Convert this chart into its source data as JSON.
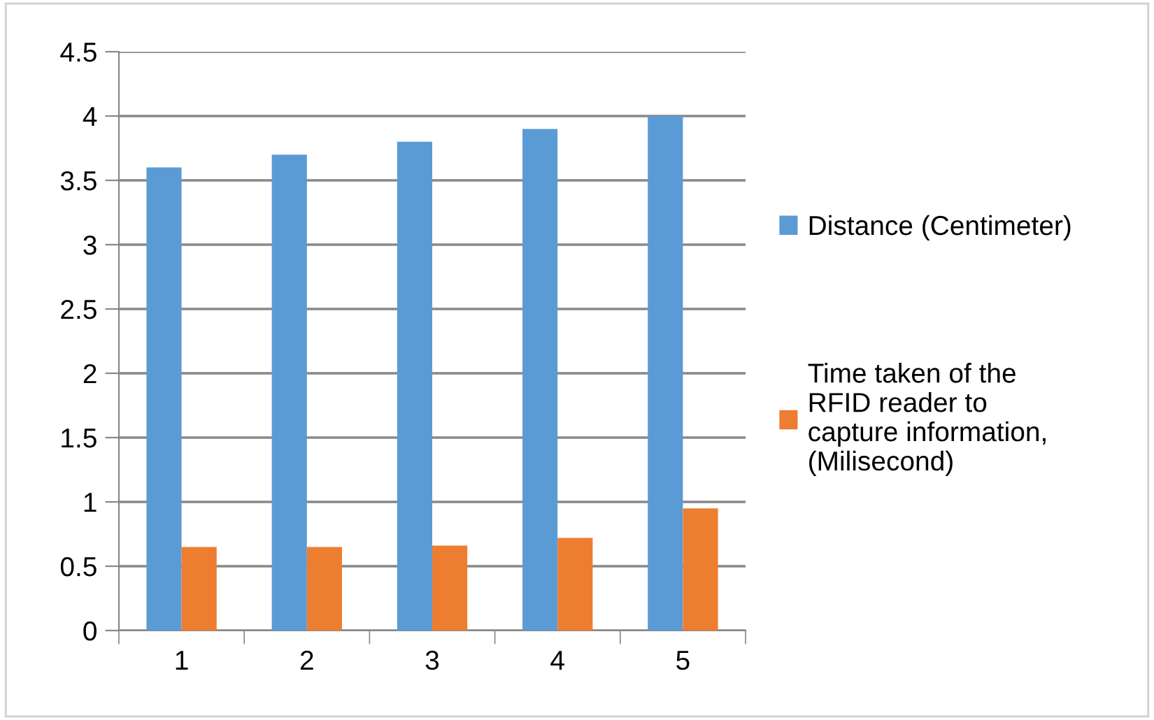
{
  "chart_data": {
    "type": "bar",
    "categories": [
      "1",
      "2",
      "3",
      "4",
      "5"
    ],
    "series": [
      {
        "name": "Distance (Centimeter)",
        "color": "#5b9bd5",
        "values": [
          3.6,
          3.7,
          3.8,
          3.9,
          4.0
        ]
      },
      {
        "name": "Time taken of the\nRFID reader to\ncapture information,\n(Milisecond)",
        "color": "#ed7d31",
        "values": [
          0.65,
          0.65,
          0.66,
          0.72,
          0.95
        ]
      }
    ],
    "ylim": [
      0,
      4.5
    ],
    "yticks": [
      0,
      0.5,
      1,
      1.5,
      2,
      2.5,
      3,
      3.5,
      4,
      4.5
    ],
    "grid": "y",
    "legend": "right"
  }
}
